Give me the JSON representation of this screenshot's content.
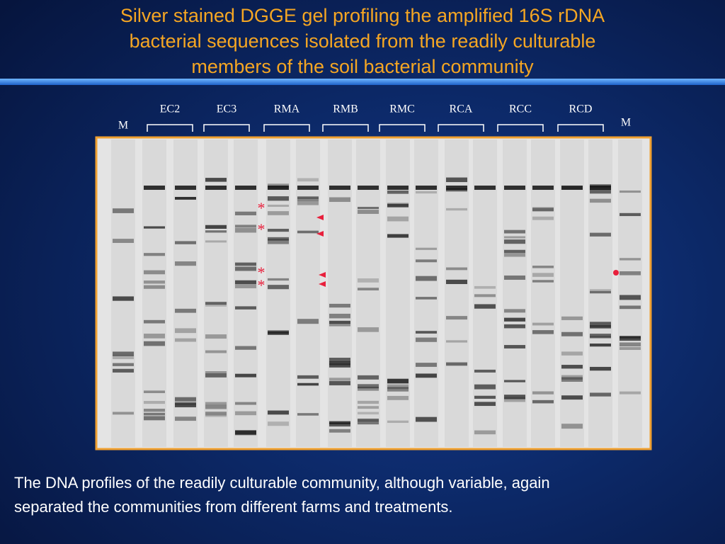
{
  "title": [
    "Silver stained DGGE gel profiling the amplified 16S rDNA",
    "bacterial sequences isolated from the readily culturable",
    "members of the soil bacterial community"
  ],
  "gel": {
    "lanes": [
      "EC2",
      "EC3",
      "RMA",
      "RMB",
      "RMC",
      "RCA",
      "RCC",
      "RCD"
    ],
    "marker_left": "M",
    "marker_right": "M",
    "asterisks": [
      "*",
      "*",
      "*",
      "*"
    ]
  },
  "caption": [
    "The DNA profiles of the readily culturable community, although variable, again",
    "separated the communities from different farms and treatments."
  ]
}
